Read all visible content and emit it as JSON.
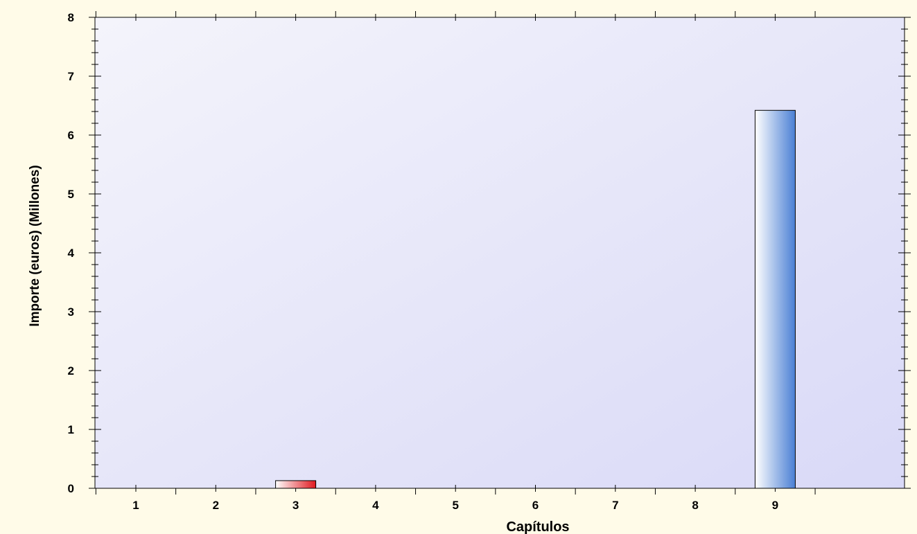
{
  "chart_data": {
    "type": "bar",
    "title": "",
    "xlabel": "Capítulos",
    "ylabel": "Importe (euros) (Millones)",
    "categories": [
      "1",
      "2",
      "3",
      "4",
      "5",
      "6",
      "7",
      "8",
      "9"
    ],
    "values": [
      0,
      0,
      0.13,
      0,
      0,
      0,
      0,
      0,
      6.42
    ],
    "bar_colors": [
      "#4a7fd4",
      "#4a7fd4",
      "#e0191f",
      "#4a7fd4",
      "#4a7fd4",
      "#4a7fd4",
      "#4a7fd4",
      "#4a7fd4",
      "#4a7fd4"
    ],
    "ylim": [
      0,
      8
    ],
    "yticks": [
      0,
      1,
      2,
      3,
      4,
      5,
      6,
      7,
      8
    ],
    "grid": false,
    "legend": "none",
    "colors": {
      "plot_background_top": "#f4f4fb",
      "plot_background_bottom": "#d9d9f7",
      "outer_background": "#fffbe8",
      "bar_highlight": "#ffffff"
    }
  }
}
